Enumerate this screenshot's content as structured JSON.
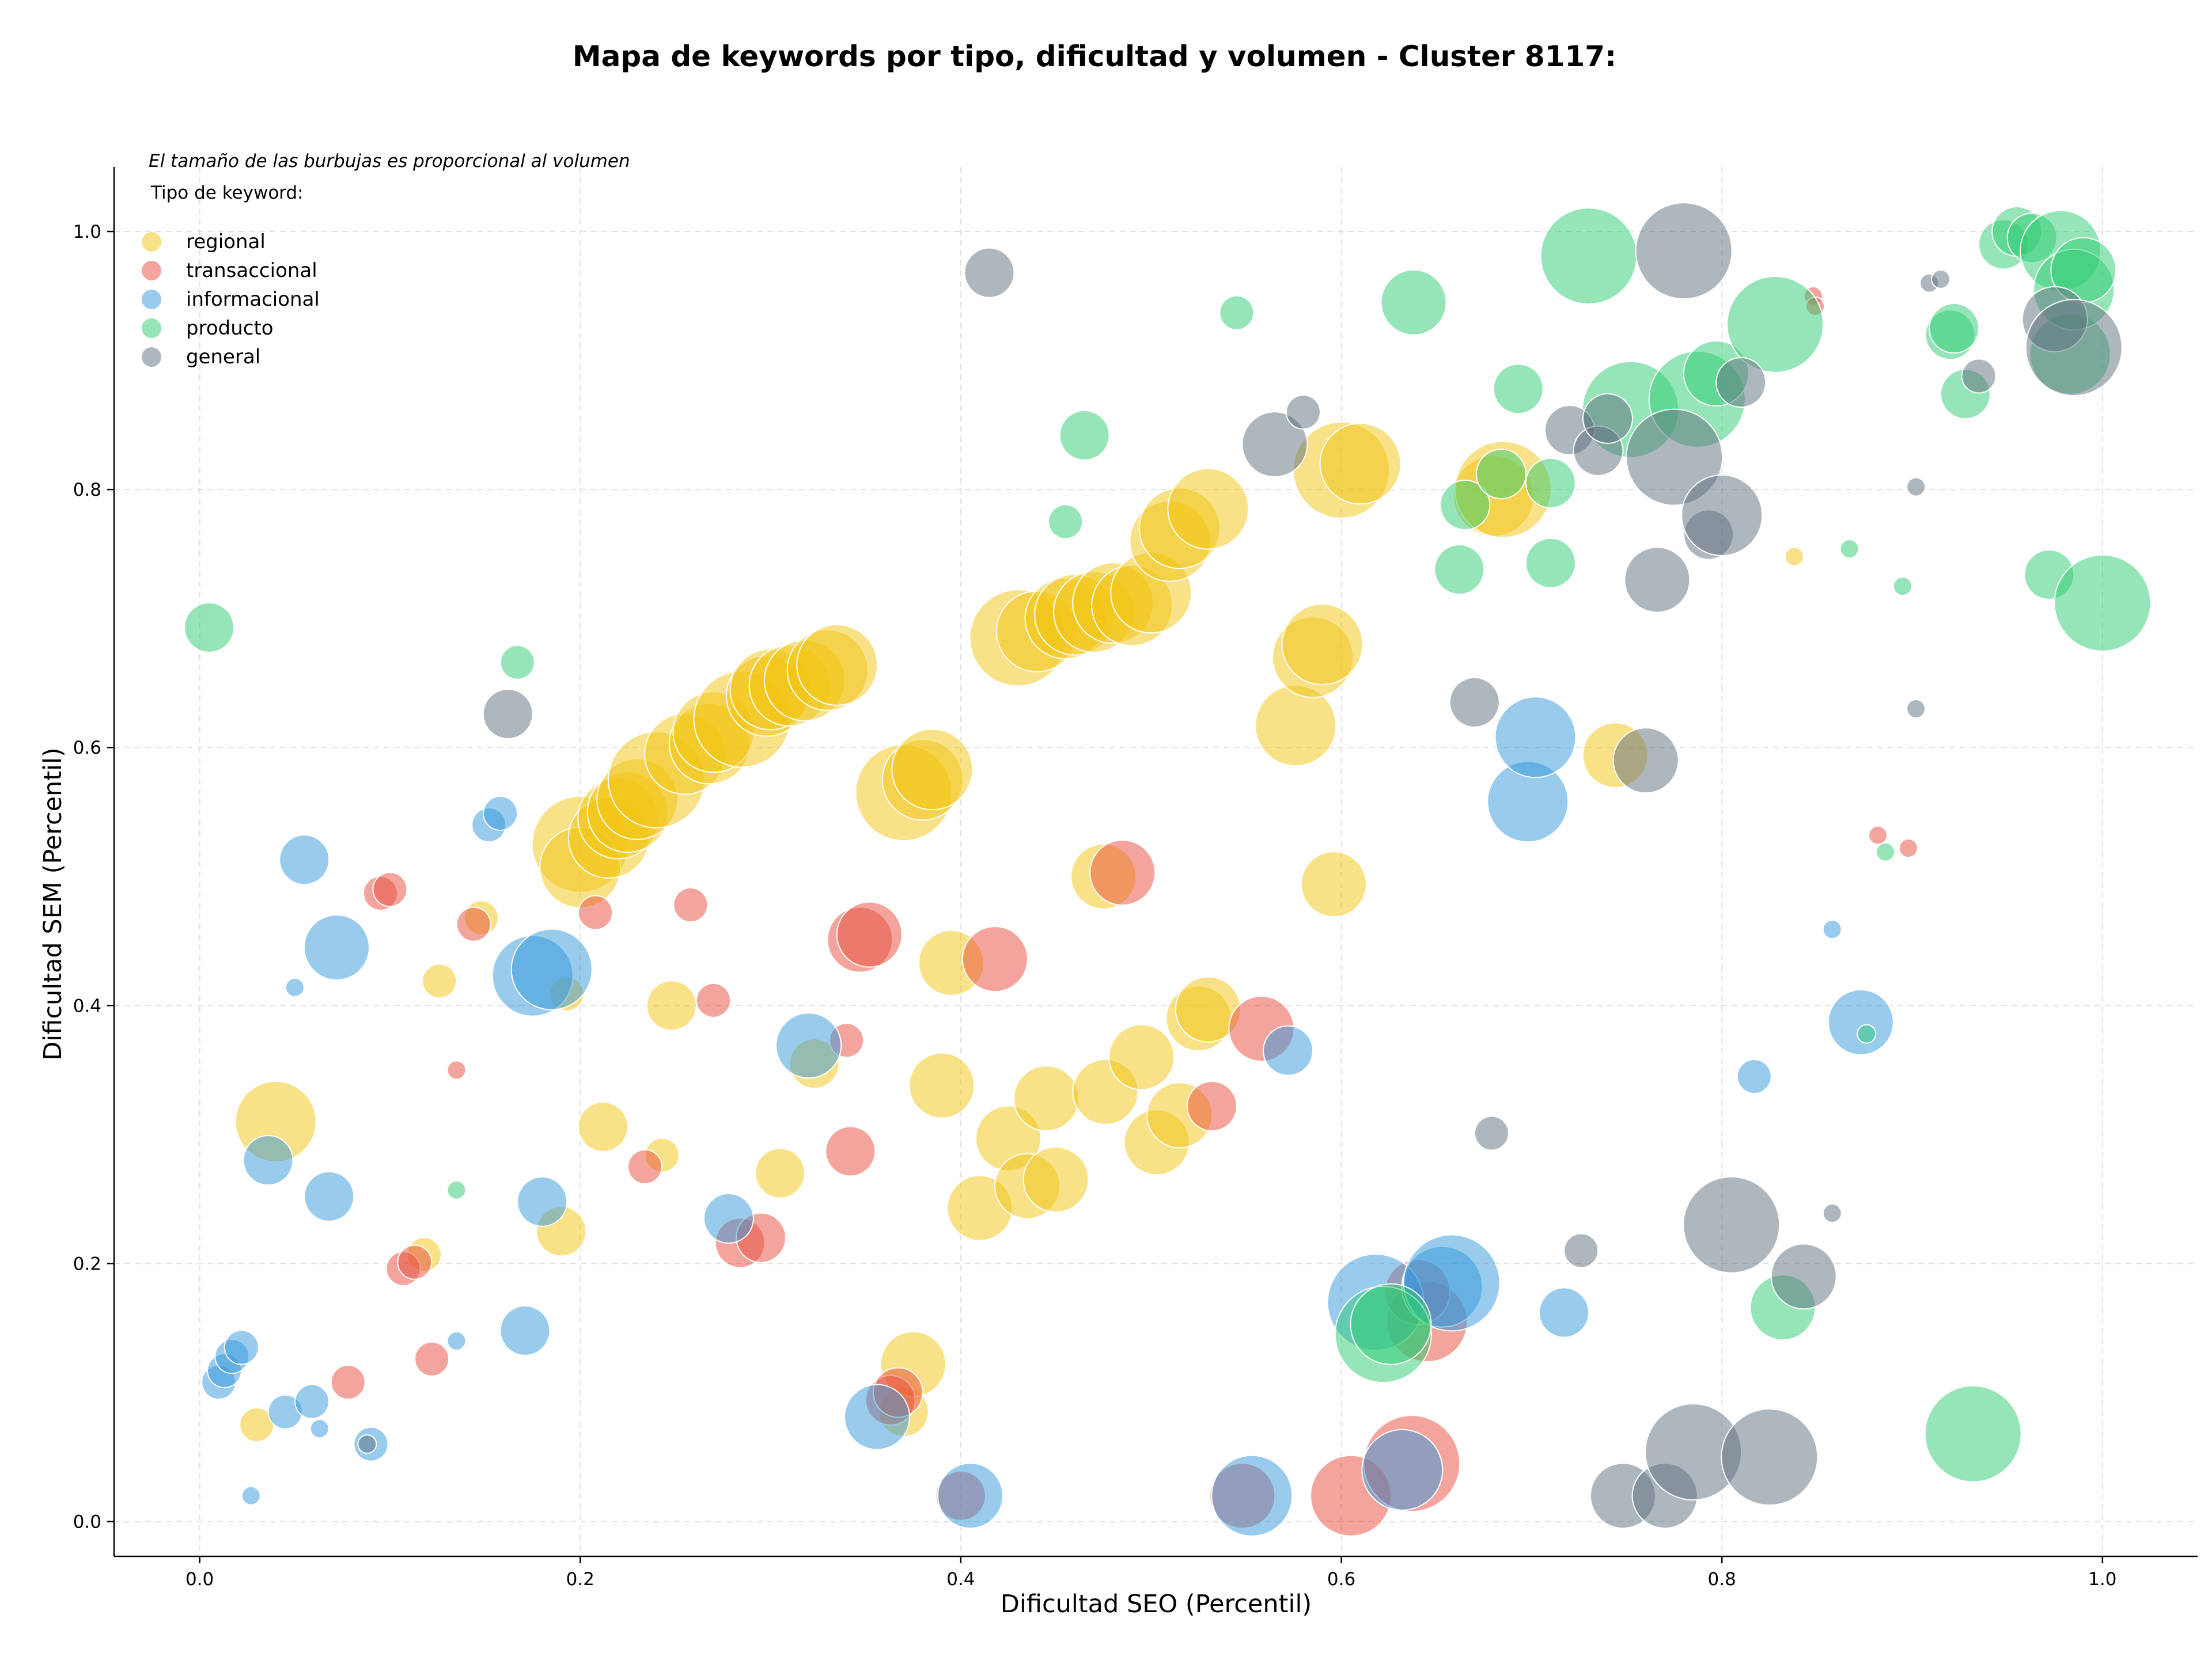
{
  "chart_data": {
    "type": "scatter",
    "title": "Mapa de keywords por tipo, dificultad y volumen - Cluster 8117:",
    "xlabel": "Dificultad SEO (Percentil)",
    "ylabel": "Dificultad SEM (Percentil)",
    "note": "El tamaño de las burbujas es proporcional al volumen",
    "legend_title": "Tipo de keyword:",
    "legend_position": "top-left",
    "grid": true,
    "xlim": [
      -0.045,
      1.05
    ],
    "ylim": [
      -0.027,
      1.05
    ],
    "xticks": [
      "0.0",
      "0.2",
      "0.4",
      "0.6",
      "0.8",
      "1.0"
    ],
    "yticks": [
      "0.0",
      "0.2",
      "0.4",
      "0.6",
      "0.8",
      "1.0"
    ],
    "series": [
      {
        "name": "regional",
        "color": "#f1c40f",
        "points": [
          [
            0.04,
            0.31,
            5
          ],
          [
            0.03,
            0.075,
            2
          ],
          [
            0.118,
            0.207,
            2
          ],
          [
            0.126,
            0.419,
            2
          ],
          [
            0.148,
            0.468,
            2
          ],
          [
            0.19,
            0.225,
            3
          ],
          [
            0.193,
            0.409,
            2
          ],
          [
            0.2,
            0.525,
            6
          ],
          [
            0.2,
            0.507,
            5
          ],
          [
            0.212,
            0.306,
            3
          ],
          [
            0.215,
            0.53,
            5
          ],
          [
            0.22,
            0.545,
            5
          ],
          [
            0.225,
            0.55,
            5
          ],
          [
            0.23,
            0.56,
            5
          ],
          [
            0.24,
            0.575,
            6
          ],
          [
            0.243,
            0.284,
            2
          ],
          [
            0.248,
            0.4,
            3
          ],
          [
            0.255,
            0.595,
            5
          ],
          [
            0.268,
            0.603,
            5
          ],
          [
            0.27,
            0.612,
            5
          ],
          [
            0.285,
            0.622,
            6
          ],
          [
            0.298,
            0.64,
            5
          ],
          [
            0.3,
            0.645,
            5
          ],
          [
            0.305,
            0.27,
            3
          ],
          [
            0.31,
            0.648,
            5
          ],
          [
            0.318,
            0.652,
            5
          ],
          [
            0.323,
            0.355,
            3
          ],
          [
            0.33,
            0.66,
            5
          ],
          [
            0.335,
            0.664,
            5
          ],
          [
            0.37,
            0.085,
            3
          ],
          [
            0.37,
            0.565,
            6
          ],
          [
            0.375,
            0.122,
            4
          ],
          [
            0.38,
            0.575,
            5
          ],
          [
            0.385,
            0.583,
            5
          ],
          [
            0.39,
            0.338,
            4
          ],
          [
            0.395,
            0.433,
            4
          ],
          [
            0.41,
            0.243,
            4
          ],
          [
            0.425,
            0.297,
            4
          ],
          [
            0.43,
            0.685,
            6
          ],
          [
            0.435,
            0.26,
            4
          ],
          [
            0.44,
            0.69,
            5
          ],
          [
            0.445,
            0.328,
            4
          ],
          [
            0.45,
            0.265,
            4
          ],
          [
            0.455,
            0.7,
            5
          ],
          [
            0.46,
            0.703,
            5
          ],
          [
            0.47,
            0.705,
            5
          ],
          [
            0.475,
            0.5,
            4
          ],
          [
            0.476,
            0.333,
            4
          ],
          [
            0.48,
            0.712,
            5
          ],
          [
            0.49,
            0.71,
            5
          ],
          [
            0.495,
            0.36,
            4
          ],
          [
            0.5,
            0.72,
            5
          ],
          [
            0.503,
            0.294,
            4
          ],
          [
            0.51,
            0.76,
            5
          ],
          [
            0.515,
            0.315,
            4
          ],
          [
            0.515,
            0.77,
            5
          ],
          [
            0.525,
            0.39,
            4
          ],
          [
            0.53,
            0.397,
            4
          ],
          [
            0.53,
            0.785,
            5
          ],
          [
            0.576,
            0.617,
            5
          ],
          [
            0.585,
            0.67,
            5
          ],
          [
            0.59,
            0.68,
            5
          ],
          [
            0.596,
            0.494,
            4
          ],
          [
            0.6,
            0.815,
            6
          ],
          [
            0.61,
            0.82,
            5
          ],
          [
            0.68,
            0.795,
            5
          ],
          [
            0.685,
            0.8,
            6
          ],
          [
            0.744,
            0.594,
            4
          ],
          [
            0.838,
            0.748,
            1
          ]
        ]
      },
      {
        "name": "transaccional",
        "color": "#e74c3c",
        "points": [
          [
            0.078,
            0.108,
            2
          ],
          [
            0.095,
            0.487,
            2
          ],
          [
            0.1,
            0.49,
            2
          ],
          [
            0.107,
            0.196,
            2
          ],
          [
            0.113,
            0.201,
            2
          ],
          [
            0.122,
            0.126,
            2
          ],
          [
            0.135,
            0.35,
            1
          ],
          [
            0.144,
            0.463,
            2
          ],
          [
            0.208,
            0.472,
            2
          ],
          [
            0.234,
            0.275,
            2
          ],
          [
            0.258,
            0.478,
            2
          ],
          [
            0.27,
            0.404,
            2
          ],
          [
            0.284,
            0.216,
            3
          ],
          [
            0.295,
            0.22,
            3
          ],
          [
            0.34,
            0.373,
            2
          ],
          [
            0.342,
            0.287,
            3
          ],
          [
            0.347,
            0.451,
            4
          ],
          [
            0.352,
            0.455,
            4
          ],
          [
            0.363,
            0.094,
            3
          ],
          [
            0.367,
            0.1,
            3
          ],
          [
            0.4,
            0.02,
            3
          ],
          [
            0.418,
            0.436,
            4
          ],
          [
            0.485,
            0.503,
            4
          ],
          [
            0.532,
            0.322,
            3
          ],
          [
            0.558,
            0.382,
            4
          ],
          [
            0.548,
            0.02,
            4
          ],
          [
            0.605,
            0.02,
            5
          ],
          [
            0.645,
            0.155,
            5
          ],
          [
            0.64,
            0.178,
            4
          ],
          [
            0.637,
            0.045,
            6
          ],
          [
            0.848,
            0.95,
            1
          ],
          [
            0.849,
            0.942,
            1
          ],
          [
            0.882,
            0.532,
            1
          ],
          [
            0.898,
            0.522,
            1
          ]
        ]
      },
      {
        "name": "informacional",
        "color": "#3498db",
        "points": [
          [
            0.01,
            0.108,
            2
          ],
          [
            0.013,
            0.117,
            2
          ],
          [
            0.017,
            0.128,
            2
          ],
          [
            0.022,
            0.135,
            2
          ],
          [
            0.027,
            0.02,
            1
          ],
          [
            0.036,
            0.28,
            3
          ],
          [
            0.045,
            0.085,
            2
          ],
          [
            0.05,
            0.414,
            1
          ],
          [
            0.055,
            0.513,
            3
          ],
          [
            0.059,
            0.093,
            2
          ],
          [
            0.063,
            0.072,
            1
          ],
          [
            0.068,
            0.252,
            3
          ],
          [
            0.072,
            0.445,
            4
          ],
          [
            0.09,
            0.06,
            2
          ],
          [
            0.135,
            0.14,
            1
          ],
          [
            0.152,
            0.54,
            2
          ],
          [
            0.158,
            0.549,
            2
          ],
          [
            0.171,
            0.148,
            3
          ],
          [
            0.175,
            0.423,
            5
          ],
          [
            0.18,
            0.248,
            3
          ],
          [
            0.185,
            0.428,
            5
          ],
          [
            0.278,
            0.235,
            3
          ],
          [
            0.32,
            0.369,
            4
          ],
          [
            0.356,
            0.081,
            4
          ],
          [
            0.405,
            0.02,
            4
          ],
          [
            0.553,
            0.02,
            5
          ],
          [
            0.572,
            0.365,
            3
          ],
          [
            0.618,
            0.17,
            6
          ],
          [
            0.632,
            0.04,
            5
          ],
          [
            0.653,
            0.182,
            5
          ],
          [
            0.658,
            0.185,
            6
          ],
          [
            0.698,
            0.558,
            5
          ],
          [
            0.702,
            0.608,
            5
          ],
          [
            0.717,
            0.162,
            3
          ],
          [
            0.817,
            0.345,
            2
          ],
          [
            0.858,
            0.459,
            1
          ],
          [
            0.873,
            0.387,
            4
          ]
        ]
      },
      {
        "name": "producto",
        "color": "#2ecc71",
        "points": [
          [
            0.005,
            0.693,
            3
          ],
          [
            0.135,
            0.257,
            1
          ],
          [
            0.167,
            0.666,
            2
          ],
          [
            0.455,
            0.775,
            2
          ],
          [
            0.465,
            0.842,
            3
          ],
          [
            0.545,
            0.937,
            2
          ],
          [
            0.622,
            0.145,
            6
          ],
          [
            0.626,
            0.153,
            5
          ],
          [
            0.638,
            0.945,
            4
          ],
          [
            0.662,
            0.738,
            3
          ],
          [
            0.665,
            0.788,
            3
          ],
          [
            0.684,
            0.812,
            3
          ],
          [
            0.693,
            0.878,
            3
          ],
          [
            0.71,
            0.805,
            3
          ],
          [
            0.71,
            0.743,
            3
          ],
          [
            0.73,
            0.981,
            6
          ],
          [
            0.752,
            0.862,
            6
          ],
          [
            0.787,
            0.87,
            6
          ],
          [
            0.797,
            0.89,
            4
          ],
          [
            0.828,
            0.928,
            6
          ],
          [
            0.832,
            0.166,
            4
          ],
          [
            0.867,
            0.754,
            1
          ],
          [
            0.876,
            0.378,
            1
          ],
          [
            0.886,
            0.519,
            1
          ],
          [
            0.895,
            0.725,
            1
          ],
          [
            0.928,
            0.874,
            3
          ],
          [
            0.92,
            0.92,
            3
          ],
          [
            0.922,
            0.925,
            3
          ],
          [
            0.932,
            0.068,
            6
          ],
          [
            0.948,
            0.99,
            3
          ],
          [
            0.955,
            1.0,
            3
          ],
          [
            0.963,
            0.995,
            3
          ],
          [
            0.972,
            0.734,
            3
          ],
          [
            0.978,
            0.985,
            5
          ],
          [
            0.983,
            0.905,
            5
          ],
          [
            0.985,
            0.955,
            5
          ],
          [
            0.99,
            0.97,
            4
          ],
          [
            1.0,
            0.712,
            6
          ]
        ]
      },
      {
        "name": "general",
        "color": "#5d6d7e",
        "points": [
          [
            0.088,
            0.06,
            1
          ],
          [
            0.162,
            0.626,
            3
          ],
          [
            0.415,
            0.968,
            3
          ],
          [
            0.565,
            0.835,
            4
          ],
          [
            0.58,
            0.86,
            2
          ],
          [
            0.67,
            0.635,
            3
          ],
          [
            0.679,
            0.301,
            2
          ],
          [
            0.72,
            0.846,
            3
          ],
          [
            0.726,
            0.21,
            2
          ],
          [
            0.735,
            0.83,
            3
          ],
          [
            0.74,
            0.855,
            3
          ],
          [
            0.748,
            0.02,
            4
          ],
          [
            0.76,
            0.59,
            4
          ],
          [
            0.766,
            0.73,
            4
          ],
          [
            0.77,
            0.02,
            4
          ],
          [
            0.775,
            0.825,
            6
          ],
          [
            0.78,
            0.985,
            6
          ],
          [
            0.785,
            0.054,
            6
          ],
          [
            0.793,
            0.765,
            3
          ],
          [
            0.8,
            0.78,
            5
          ],
          [
            0.805,
            0.23,
            6
          ],
          [
            0.81,
            0.883,
            3
          ],
          [
            0.825,
            0.05,
            6
          ],
          [
            0.843,
            0.19,
            4
          ],
          [
            0.858,
            0.239,
            1
          ],
          [
            0.902,
            0.802,
            1
          ],
          [
            0.902,
            0.63,
            1
          ],
          [
            0.909,
            0.96,
            1
          ],
          [
            0.915,
            0.963,
            1
          ],
          [
            0.935,
            0.888,
            2
          ],
          [
            0.975,
            0.932,
            4
          ],
          [
            0.985,
            0.91,
            6
          ]
        ]
      }
    ]
  }
}
